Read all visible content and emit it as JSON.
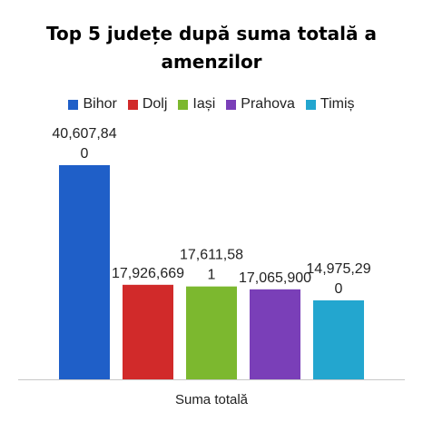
{
  "chart_data": {
    "type": "bar",
    "title": "Top 5 județe după suma totală a amenzilor",
    "title_lines": [
      "Top 5 județe după suma totală a",
      "amenzilor"
    ],
    "xlabel": "Suma totală",
    "ylabel": "",
    "categories": [
      "Suma totală"
    ],
    "series": [
      {
        "name": "Bihor",
        "values": [
          40607840
        ],
        "label_lines": [
          "40,607,84",
          "0"
        ],
        "color": "#1f5fc8"
      },
      {
        "name": "Dolj",
        "values": [
          17926669
        ],
        "label_lines": [
          "17,926,669"
        ],
        "color": "#d12a2a"
      },
      {
        "name": "Iași",
        "values": [
          17611581
        ],
        "label_lines": [
          "17,611,58",
          "1"
        ],
        "color": "#7cb82f"
      },
      {
        "name": "Prahova",
        "values": [
          17065900
        ],
        "label_lines": [
          "17,065,900"
        ],
        "color": "#7a3fb8"
      },
      {
        "name": "Timiș",
        "values": [
          14975290
        ],
        "label_lines": [
          "14,975,29",
          "0"
        ],
        "color": "#23a6cf"
      }
    ],
    "ylim": [
      0,
      40607840
    ],
    "grid": false,
    "legend": "top"
  }
}
